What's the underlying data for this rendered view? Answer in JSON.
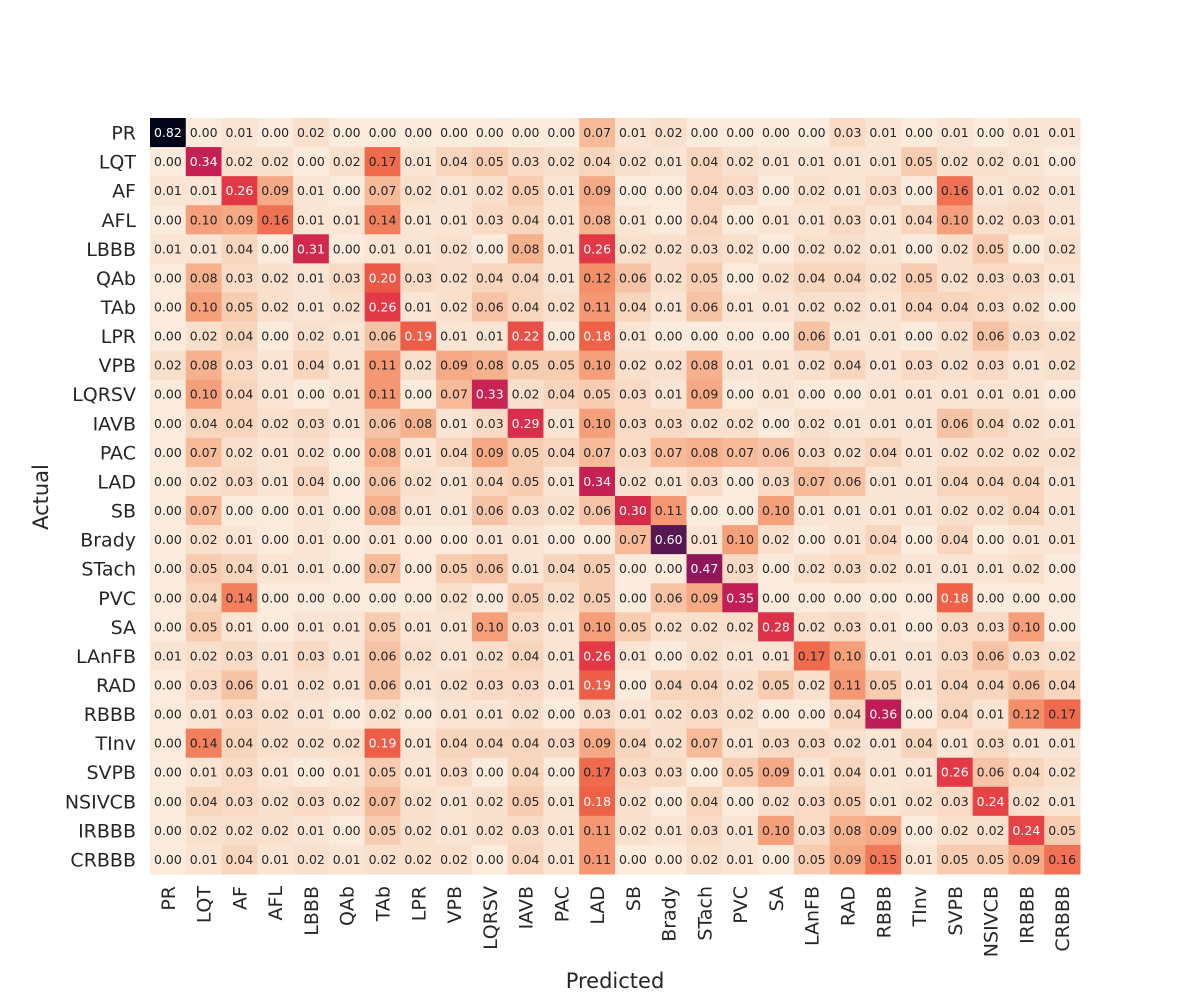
{
  "chart_data": {
    "type": "heatmap",
    "xlabel": "Predicted",
    "ylabel": "Actual",
    "labels": [
      "PR",
      "LQT",
      "AF",
      "AFL",
      "LBBB",
      "QAb",
      "TAb",
      "LPR",
      "VPB",
      "LQRSV",
      "IAVB",
      "PAC",
      "LAD",
      "SB",
      "Brady",
      "STach",
      "PVC",
      "SA",
      "LAnFB",
      "RAD",
      "RBBB",
      "TInv",
      "SVPB",
      "NSIVCB",
      "IRBBB",
      "CRBBB"
    ],
    "values": [
      [
        0.82,
        0.0,
        0.01,
        0.0,
        0.02,
        0.0,
        0.0,
        0.0,
        0.0,
        0.0,
        0.0,
        0.0,
        0.07,
        0.01,
        0.02,
        0.0,
        0.0,
        0.0,
        0.0,
        0.03,
        0.01,
        0.0,
        0.01,
        0.0,
        0.01,
        0.01
      ],
      [
        0.0,
        0.34,
        0.02,
        0.02,
        0.0,
        0.02,
        0.17,
        0.01,
        0.04,
        0.05,
        0.03,
        0.02,
        0.04,
        0.02,
        0.01,
        0.04,
        0.02,
        0.01,
        0.01,
        0.01,
        0.01,
        0.05,
        0.02,
        0.02,
        0.01,
        0.0
      ],
      [
        0.01,
        0.01,
        0.26,
        0.09,
        0.01,
        0.0,
        0.07,
        0.02,
        0.01,
        0.02,
        0.05,
        0.01,
        0.09,
        0.0,
        0.0,
        0.04,
        0.03,
        0.0,
        0.02,
        0.01,
        0.03,
        0.0,
        0.16,
        0.01,
        0.02,
        0.01
      ],
      [
        0.0,
        0.1,
        0.09,
        0.16,
        0.01,
        0.01,
        0.14,
        0.01,
        0.01,
        0.03,
        0.04,
        0.01,
        0.08,
        0.01,
        0.0,
        0.04,
        0.0,
        0.01,
        0.01,
        0.03,
        0.01,
        0.04,
        0.1,
        0.02,
        0.03,
        0.01
      ],
      [
        0.01,
        0.01,
        0.04,
        0.0,
        0.31,
        0.0,
        0.01,
        0.01,
        0.02,
        0.0,
        0.08,
        0.01,
        0.26,
        0.02,
        0.02,
        0.03,
        0.02,
        0.0,
        0.02,
        0.02,
        0.01,
        0.0,
        0.02,
        0.05,
        0.0,
        0.02
      ],
      [
        0.0,
        0.08,
        0.03,
        0.02,
        0.01,
        0.03,
        0.2,
        0.03,
        0.02,
        0.04,
        0.04,
        0.01,
        0.12,
        0.06,
        0.02,
        0.05,
        0.0,
        0.02,
        0.04,
        0.04,
        0.02,
        0.05,
        0.02,
        0.03,
        0.03,
        0.01
      ],
      [
        0.0,
        0.1,
        0.05,
        0.02,
        0.01,
        0.02,
        0.26,
        0.01,
        0.02,
        0.06,
        0.04,
        0.02,
        0.11,
        0.04,
        0.01,
        0.06,
        0.01,
        0.01,
        0.02,
        0.02,
        0.01,
        0.04,
        0.04,
        0.03,
        0.02,
        0.0
      ],
      [
        0.0,
        0.02,
        0.04,
        0.0,
        0.02,
        0.01,
        0.06,
        0.19,
        0.01,
        0.01,
        0.22,
        0.0,
        0.18,
        0.01,
        0.0,
        0.0,
        0.0,
        0.0,
        0.06,
        0.01,
        0.01,
        0.0,
        0.02,
        0.06,
        0.03,
        0.02
      ],
      [
        0.02,
        0.08,
        0.03,
        0.01,
        0.04,
        0.01,
        0.11,
        0.02,
        0.09,
        0.08,
        0.05,
        0.05,
        0.1,
        0.02,
        0.02,
        0.08,
        0.01,
        0.01,
        0.02,
        0.04,
        0.01,
        0.03,
        0.02,
        0.03,
        0.01,
        0.02
      ],
      [
        0.0,
        0.1,
        0.04,
        0.01,
        0.0,
        0.01,
        0.11,
        0.0,
        0.07,
        0.33,
        0.02,
        0.04,
        0.05,
        0.03,
        0.01,
        0.09,
        0.0,
        0.01,
        0.0,
        0.0,
        0.01,
        0.01,
        0.01,
        0.01,
        0.01,
        0.0
      ],
      [
        0.0,
        0.04,
        0.04,
        0.02,
        0.03,
        0.01,
        0.06,
        0.08,
        0.01,
        0.03,
        0.29,
        0.01,
        0.1,
        0.03,
        0.03,
        0.02,
        0.02,
        0.0,
        0.02,
        0.01,
        0.01,
        0.01,
        0.06,
        0.04,
        0.02,
        0.01
      ],
      [
        0.0,
        0.07,
        0.02,
        0.01,
        0.02,
        0.0,
        0.08,
        0.01,
        0.04,
        0.09,
        0.05,
        0.04,
        0.07,
        0.03,
        0.07,
        0.08,
        0.07,
        0.06,
        0.03,
        0.02,
        0.04,
        0.01,
        0.02,
        0.02,
        0.02,
        0.02
      ],
      [
        0.0,
        0.02,
        0.03,
        0.01,
        0.04,
        0.0,
        0.06,
        0.02,
        0.01,
        0.04,
        0.05,
        0.01,
        0.34,
        0.02,
        0.01,
        0.03,
        0.0,
        0.03,
        0.07,
        0.06,
        0.01,
        0.01,
        0.04,
        0.04,
        0.04,
        0.01
      ],
      [
        0.0,
        0.07,
        0.0,
        0.0,
        0.01,
        0.0,
        0.08,
        0.01,
        0.01,
        0.06,
        0.03,
        0.02,
        0.06,
        0.3,
        0.11,
        0.0,
        0.0,
        0.1,
        0.01,
        0.01,
        0.01,
        0.01,
        0.02,
        0.02,
        0.04,
        0.01
      ],
      [
        0.0,
        0.02,
        0.01,
        0.0,
        0.01,
        0.0,
        0.01,
        0.0,
        0.0,
        0.01,
        0.01,
        0.0,
        0.0,
        0.07,
        0.6,
        0.01,
        0.1,
        0.02,
        0.0,
        0.01,
        0.04,
        0.0,
        0.04,
        0.0,
        0.01,
        0.01
      ],
      [
        0.0,
        0.05,
        0.04,
        0.01,
        0.01,
        0.0,
        0.07,
        0.0,
        0.05,
        0.06,
        0.01,
        0.04,
        0.05,
        0.0,
        0.0,
        0.47,
        0.03,
        0.0,
        0.02,
        0.03,
        0.02,
        0.01,
        0.01,
        0.01,
        0.02,
        0.0
      ],
      [
        0.0,
        0.04,
        0.14,
        0.0,
        0.0,
        0.0,
        0.0,
        0.0,
        0.02,
        0.0,
        0.05,
        0.02,
        0.05,
        0.0,
        0.06,
        0.09,
        0.35,
        0.0,
        0.0,
        0.0,
        0.0,
        0.0,
        0.18,
        0.0,
        0.0,
        0.0
      ],
      [
        0.0,
        0.05,
        0.01,
        0.0,
        0.01,
        0.01,
        0.05,
        0.01,
        0.01,
        0.1,
        0.03,
        0.01,
        0.1,
        0.05,
        0.02,
        0.02,
        0.02,
        0.28,
        0.02,
        0.03,
        0.01,
        0.0,
        0.03,
        0.03,
        0.1,
        0.0
      ],
      [
        0.01,
        0.02,
        0.03,
        0.01,
        0.03,
        0.01,
        0.06,
        0.02,
        0.01,
        0.02,
        0.04,
        0.01,
        0.26,
        0.01,
        0.0,
        0.02,
        0.01,
        0.01,
        0.17,
        0.1,
        0.01,
        0.01,
        0.03,
        0.06,
        0.03,
        0.02
      ],
      [
        0.0,
        0.03,
        0.06,
        0.01,
        0.02,
        0.01,
        0.06,
        0.01,
        0.02,
        0.03,
        0.03,
        0.01,
        0.19,
        0.0,
        0.04,
        0.04,
        0.02,
        0.05,
        0.02,
        0.11,
        0.05,
        0.01,
        0.04,
        0.04,
        0.06,
        0.04
      ],
      [
        0.0,
        0.01,
        0.03,
        0.02,
        0.01,
        0.0,
        0.02,
        0.0,
        0.01,
        0.01,
        0.02,
        0.0,
        0.03,
        0.01,
        0.02,
        0.03,
        0.02,
        0.0,
        0.0,
        0.04,
        0.36,
        0.0,
        0.04,
        0.01,
        0.12,
        0.17
      ],
      [
        0.0,
        0.14,
        0.04,
        0.02,
        0.02,
        0.02,
        0.19,
        0.01,
        0.04,
        0.04,
        0.04,
        0.03,
        0.09,
        0.04,
        0.02,
        0.07,
        0.01,
        0.03,
        0.03,
        0.02,
        0.01,
        0.04,
        0.01,
        0.03,
        0.01,
        0.01
      ],
      [
        0.0,
        0.01,
        0.03,
        0.01,
        0.0,
        0.01,
        0.05,
        0.01,
        0.03,
        0.0,
        0.04,
        0.0,
        0.17,
        0.03,
        0.03,
        0.0,
        0.05,
        0.09,
        0.01,
        0.04,
        0.01,
        0.01,
        0.26,
        0.06,
        0.04,
        0.02
      ],
      [
        0.0,
        0.04,
        0.03,
        0.02,
        0.03,
        0.02,
        0.07,
        0.02,
        0.01,
        0.02,
        0.05,
        0.01,
        0.18,
        0.02,
        0.0,
        0.04,
        0.0,
        0.02,
        0.03,
        0.05,
        0.01,
        0.02,
        0.03,
        0.24,
        0.02,
        0.01
      ],
      [
        0.0,
        0.02,
        0.02,
        0.02,
        0.01,
        0.0,
        0.05,
        0.02,
        0.01,
        0.02,
        0.03,
        0.01,
        0.11,
        0.02,
        0.01,
        0.03,
        0.01,
        0.1,
        0.03,
        0.08,
        0.09,
        0.0,
        0.02,
        0.02,
        0.24,
        0.05
      ],
      [
        0.0,
        0.01,
        0.04,
        0.01,
        0.02,
        0.01,
        0.02,
        0.02,
        0.02,
        0.0,
        0.04,
        0.01,
        0.11,
        0.0,
        0.0,
        0.02,
        0.01,
        0.0,
        0.05,
        0.09,
        0.15,
        0.01,
        0.05,
        0.05,
        0.09,
        0.16
      ]
    ],
    "colorscale": "rocket_r",
    "vmin": 0.0,
    "vmax": 0.82
  }
}
